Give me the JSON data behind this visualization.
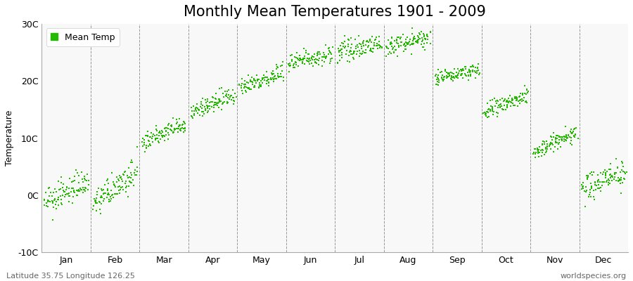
{
  "title": "Monthly Mean Temperatures 1901 - 2009",
  "ylabel": "Temperature",
  "ylim": [
    -10,
    30
  ],
  "yticks": [
    -10,
    0,
    10,
    20,
    30
  ],
  "ytick_labels": [
    "-10C",
    "0C",
    "10C",
    "20C",
    "30C"
  ],
  "months": [
    "Jan",
    "Feb",
    "Mar",
    "Apr",
    "May",
    "Jun",
    "Jul",
    "Aug",
    "Sep",
    "Oct",
    "Nov",
    "Dec"
  ],
  "dot_color": "#22bb00",
  "background_color": "#f0f0f0",
  "plot_bg_color": "#f8f8f8",
  "footer_left": "Latitude 35.75 Longitude 126.25",
  "footer_right": "worldspecies.org",
  "legend_label": "Mean Temp",
  "mean_temps_1901": [
    -1.5,
    -1.5,
    9.0,
    14.5,
    19.0,
    23.0,
    25.0,
    26.0,
    20.5,
    14.5,
    7.5,
    1.0
  ],
  "mean_temps_2009": [
    2.5,
    4.0,
    12.5,
    17.5,
    21.5,
    25.0,
    26.5,
    27.5,
    22.0,
    17.5,
    11.0,
    4.5
  ],
  "noise_std": [
    1.2,
    1.2,
    0.8,
    0.8,
    0.8,
    0.8,
    0.8,
    0.8,
    0.6,
    0.8,
    0.8,
    1.2
  ],
  "n_years": 109,
  "title_fontsize": 15,
  "axis_fontsize": 9,
  "footer_fontsize": 8,
  "legend_fontsize": 9
}
